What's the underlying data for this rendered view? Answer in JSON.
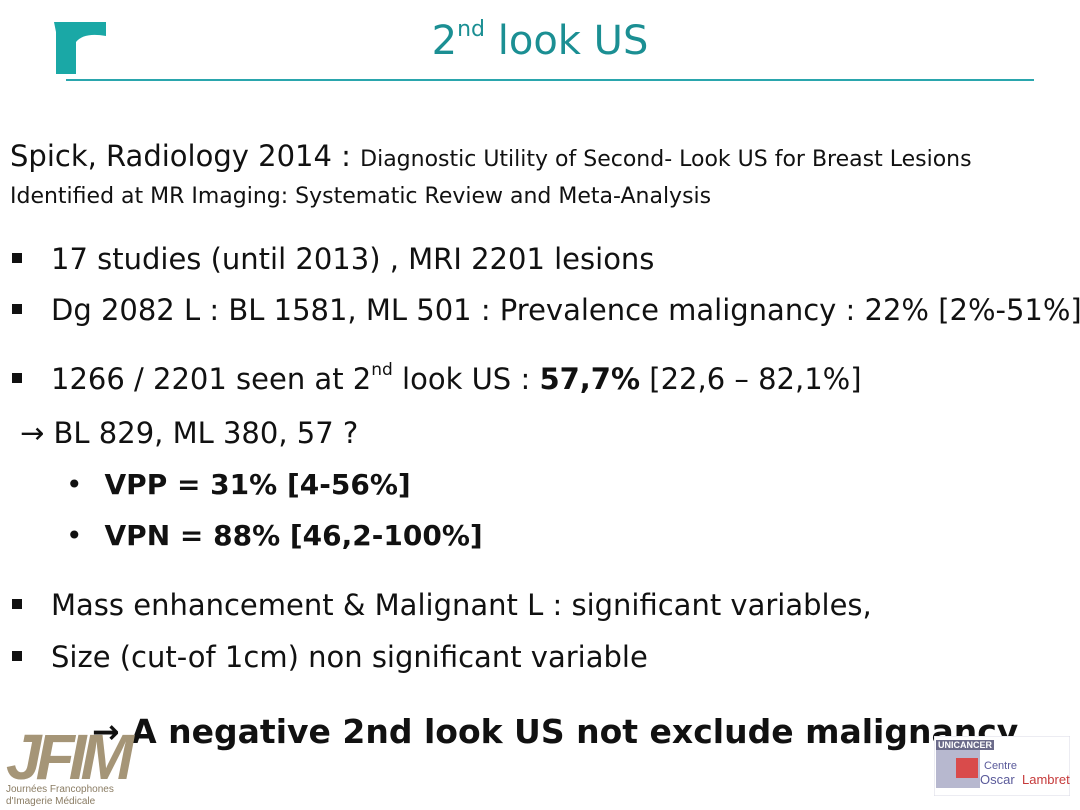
{
  "header": {
    "title_pre": "2",
    "title_sup": "nd",
    "title_post": " look US"
  },
  "reference": {
    "lead": "Spick, Radiology 2014 : ",
    "detail": "Diagnostic Utility of Second- Look US for Breast Lesions Identified at MR Imaging: Systematic Review and Meta-Analysis"
  },
  "bullets": {
    "b1": "17 studies (until 2013) , MRI 2201 lesions",
    "b2": "Dg 2082 L : BL 1581, ML 501 : Prevalence malignancy : 22% [2%-51%]",
    "b3_pre": "1266 / 2201 seen at 2",
    "b3_sup": "nd",
    "b3_mid": " look US : ",
    "b3_bold": "57,7%",
    "b3_post": " [22,6 – 82,1%]",
    "arrow_line": "BL 829, ML 380, 57 ?",
    "vpp": "VPP  = 31% [4-56%]",
    "vpn": "VPN = 88% [46,2-100%]",
    "b4": "Mass enhancement & Malignant L :  significant variables,",
    "b5": "Size (cut-of 1cm) non significant variable"
  },
  "conclusion": "A negative 2nd look US not exclude malignancy",
  "logos": {
    "jfim_letters": "JFIM",
    "jfim_line1": "Journées Francophones",
    "jfim_line2": "d'Imagerie Médicale",
    "unicancer": "UNICANCER",
    "centre": "Centre",
    "oscar": "Oscar",
    "lambret": "Lambret"
  },
  "colors": {
    "accent": "#1b8f93",
    "rule": "#2aa6ad"
  }
}
